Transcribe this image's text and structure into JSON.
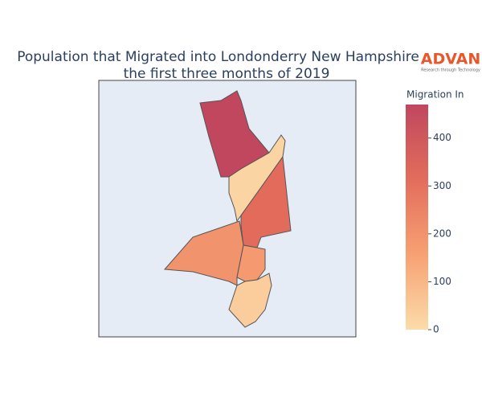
{
  "chart_data": {
    "type": "choropleth",
    "title_lines": [
      "Population that Migrated into Londonderry New Hampshire in",
      "the first three months of 2019"
    ],
    "logo": {
      "name": "ADVAN",
      "tagline": "Research through Technology"
    },
    "values": [
      470,
      20,
      320,
      200,
      180,
      40
    ],
    "colorscale": [
      "#fcdcaa",
      "#f7a173",
      "#e36d5c",
      "#c0475e"
    ],
    "colorbar_title": "Migration In",
    "zlim": [
      0,
      470
    ],
    "zticks": [
      0,
      100,
      200,
      300,
      400
    ],
    "region_border_color": "#555555",
    "map_background": "#e5ecf6"
  }
}
